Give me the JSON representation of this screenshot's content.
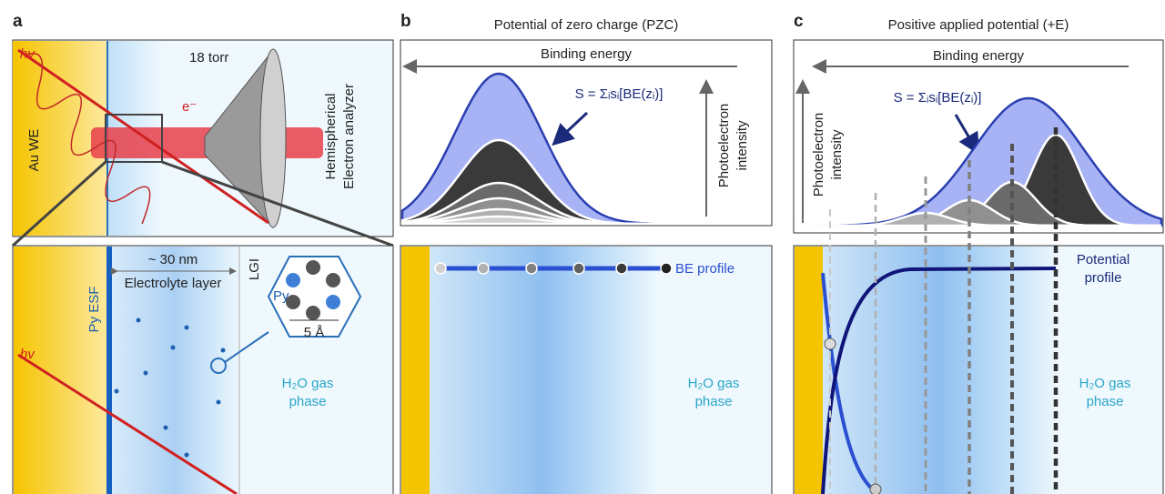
{
  "panel_a": {
    "label": "a",
    "photon": "hv",
    "electrode": "Au WE",
    "pressure": "18 torr",
    "electron": "e⁻",
    "analyzer": [
      "Hemispherical",
      "Electron analyzer"
    ],
    "photon_lower": "hv",
    "thickness": "~ 30 nm",
    "layer": "Electrolyte layer",
    "interface": "LGI",
    "molecule": "Py",
    "scale": "5 Å",
    "surface": "Py ESF",
    "gas": [
      "H₂O gas",
      "phase"
    ]
  },
  "panel_b": {
    "label": "b",
    "title": "Potential of zero charge (PZC)",
    "axis": "Binding energy",
    "formula": "S = Σᵢsᵢ[BE(zᵢ)]",
    "intensity": [
      "Photoelectron",
      "intensity"
    ],
    "profile": "BE profile",
    "gas": [
      "H₂O gas",
      "phase"
    ]
  },
  "panel_c": {
    "label": "c",
    "title": "Positive applied potential (+E)",
    "axis": "Binding energy",
    "formula": "S = Σᵢsᵢ[BE(zᵢ)]",
    "intensity": [
      "Photoelectron",
      "intensity"
    ],
    "profile": [
      "Potential",
      "profile"
    ],
    "gas": [
      "H₂O gas",
      "phase"
    ]
  }
}
